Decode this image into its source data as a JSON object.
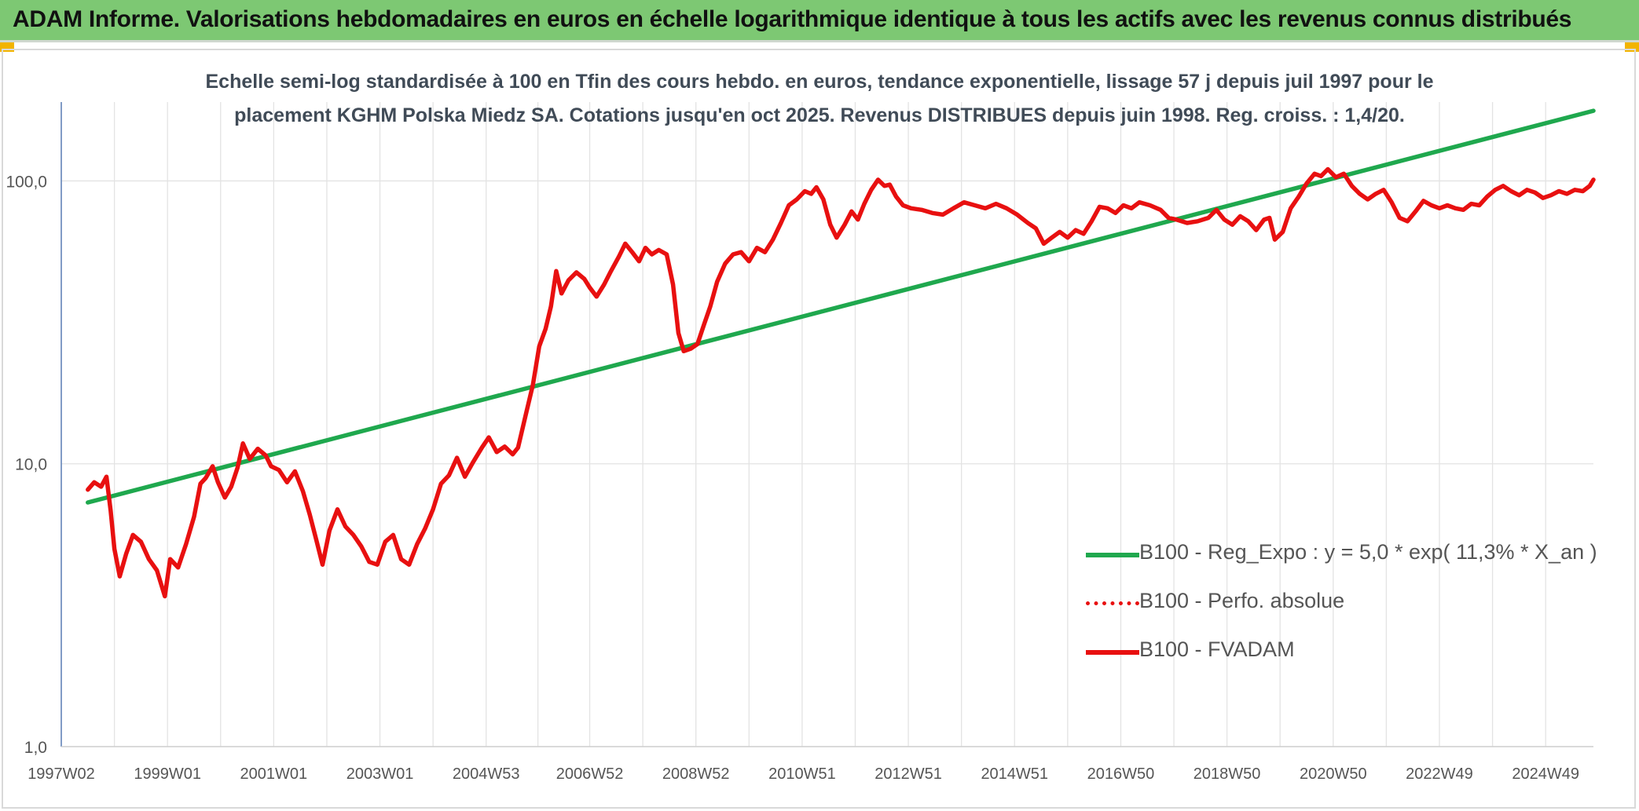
{
  "header": {
    "banner_title": "ADAM Informe. Valorisations hebdomadaires en euros en échelle logarithmique identique à tous les actifs avec les revenus connus distribués"
  },
  "chart_data": {
    "type": "line",
    "title_line1": "Echelle semi-log standardisée à 100 en Tfin des cours hebdo. en euros, tendance exponentielle, lissage 57 j depuis juil 1997 pour le",
    "title_line2": "placement KGHM Polska Miedz SA. Cotations jusqu'en oct 2025. Revenus DISTRIBUES depuis juin 1998. Reg. croiss. : 1,4/20.",
    "y_scale": "log",
    "ylim": [
      1,
      190
    ],
    "xlim": [
      1997.0,
      2025.85
    ],
    "x_tick_positions": [
      1997.0,
      1999.0,
      2001.0,
      2003.0,
      2005.0,
      2006.95,
      2008.95,
      2010.95,
      2012.95,
      2014.95,
      2016.95,
      2018.95,
      2020.95,
      2022.95,
      2024.95
    ],
    "x_tick_labels": [
      "1997W02",
      "1999W01",
      "2001W01",
      "2003W01",
      "2004W53",
      "2006W52",
      "2008W52",
      "2010W51",
      "2012W51",
      "2014W51",
      "2016W50",
      "2018W50",
      "2020W50",
      "2022W49",
      "2024W49"
    ],
    "y_ticks": [
      1,
      10,
      100
    ],
    "y_tick_labels": [
      "1,0",
      "10,0",
      "100,0"
    ],
    "grid": "vertical and horizontal",
    "legend_position": "bottom-right",
    "series": [
      {
        "name": "B100 - Reg_Expo : y = 5,0 * exp( 11,3% *  X_an )",
        "color": "#1fa84e",
        "style": "solid",
        "points": [
          [
            1997.5,
            7.3
          ],
          [
            2025.85,
            177
          ]
        ]
      },
      {
        "name": "B100 - Perfo. absolue",
        "color": "#e81010",
        "style": "dotted",
        "points": []
      },
      {
        "name": "B100 - FVADAM",
        "color": "#e81010",
        "style": "solid",
        "points": [
          [
            1997.5,
            8.1
          ],
          [
            1997.62,
            8.6
          ],
          [
            1997.75,
            8.3
          ],
          [
            1997.85,
            9.0
          ],
          [
            1997.93,
            6.8
          ],
          [
            1998.0,
            5.0
          ],
          [
            1998.1,
            4.0
          ],
          [
            1998.22,
            4.8
          ],
          [
            1998.35,
            5.6
          ],
          [
            1998.5,
            5.3
          ],
          [
            1998.65,
            4.6
          ],
          [
            1998.8,
            4.2
          ],
          [
            1998.95,
            3.4
          ],
          [
            1999.05,
            4.6
          ],
          [
            1999.2,
            4.3
          ],
          [
            1999.35,
            5.2
          ],
          [
            1999.5,
            6.5
          ],
          [
            1999.62,
            8.5
          ],
          [
            1999.72,
            8.9
          ],
          [
            1999.85,
            9.8
          ],
          [
            1999.95,
            8.6
          ],
          [
            2000.08,
            7.6
          ],
          [
            2000.2,
            8.3
          ],
          [
            2000.32,
            9.7
          ],
          [
            2000.42,
            11.8
          ],
          [
            2000.55,
            10.4
          ],
          [
            2000.7,
            11.3
          ],
          [
            2000.85,
            10.7
          ],
          [
            2000.95,
            9.8
          ],
          [
            2001.1,
            9.5
          ],
          [
            2001.25,
            8.6
          ],
          [
            2001.4,
            9.4
          ],
          [
            2001.55,
            8.0
          ],
          [
            2001.68,
            6.6
          ],
          [
            2001.8,
            5.4
          ],
          [
            2001.92,
            4.4
          ],
          [
            2002.05,
            5.8
          ],
          [
            2002.2,
            6.9
          ],
          [
            2002.35,
            6.0
          ],
          [
            2002.5,
            5.6
          ],
          [
            2002.65,
            5.1
          ],
          [
            2002.8,
            4.5
          ],
          [
            2002.95,
            4.4
          ],
          [
            2003.1,
            5.3
          ],
          [
            2003.25,
            5.6
          ],
          [
            2003.4,
            4.6
          ],
          [
            2003.55,
            4.4
          ],
          [
            2003.7,
            5.2
          ],
          [
            2003.85,
            5.9
          ],
          [
            2004.0,
            6.9
          ],
          [
            2004.15,
            8.5
          ],
          [
            2004.3,
            9.1
          ],
          [
            2004.45,
            10.5
          ],
          [
            2004.6,
            9.0
          ],
          [
            2004.75,
            10.1
          ],
          [
            2004.92,
            11.4
          ],
          [
            2005.05,
            12.4
          ],
          [
            2005.2,
            11.0
          ],
          [
            2005.35,
            11.5
          ],
          [
            2005.5,
            10.8
          ],
          [
            2005.6,
            11.4
          ],
          [
            2005.75,
            15.0
          ],
          [
            2005.88,
            19.0
          ],
          [
            2006.0,
            26.0
          ],
          [
            2006.12,
            30.0
          ],
          [
            2006.22,
            36.0
          ],
          [
            2006.32,
            48.0
          ],
          [
            2006.42,
            40.0
          ],
          [
            2006.55,
            44.5
          ],
          [
            2006.7,
            47.5
          ],
          [
            2006.85,
            45.0
          ],
          [
            2006.95,
            42.0
          ],
          [
            2007.08,
            39.0
          ],
          [
            2007.22,
            43.0
          ],
          [
            2007.35,
            48.0
          ],
          [
            2007.5,
            54.0
          ],
          [
            2007.62,
            60.0
          ],
          [
            2007.75,
            56.0
          ],
          [
            2007.88,
            52.0
          ],
          [
            2008.0,
            58.0
          ],
          [
            2008.12,
            55.0
          ],
          [
            2008.25,
            57.0
          ],
          [
            2008.4,
            55.0
          ],
          [
            2008.52,
            43.0
          ],
          [
            2008.62,
            29.0
          ],
          [
            2008.72,
            25.0
          ],
          [
            2008.85,
            25.5
          ],
          [
            2008.98,
            26.5
          ],
          [
            2009.1,
            31.0
          ],
          [
            2009.22,
            36.0
          ],
          [
            2009.35,
            44.0
          ],
          [
            2009.5,
            51.0
          ],
          [
            2009.65,
            55.0
          ],
          [
            2009.8,
            56.0
          ],
          [
            2009.95,
            52.0
          ],
          [
            2010.1,
            58.0
          ],
          [
            2010.25,
            56.0
          ],
          [
            2010.4,
            62.0
          ],
          [
            2010.55,
            71.0
          ],
          [
            2010.7,
            82.0
          ],
          [
            2010.85,
            86.0
          ],
          [
            2011.0,
            92.0
          ],
          [
            2011.12,
            90.0
          ],
          [
            2011.22,
            95.0
          ],
          [
            2011.35,
            86.0
          ],
          [
            2011.48,
            70.0
          ],
          [
            2011.6,
            63.0
          ],
          [
            2011.75,
            70.0
          ],
          [
            2011.88,
            78.0
          ],
          [
            2012.0,
            73.0
          ],
          [
            2012.12,
            83.0
          ],
          [
            2012.25,
            93.0
          ],
          [
            2012.38,
            101.0
          ],
          [
            2012.5,
            96.0
          ],
          [
            2012.6,
            97.0
          ],
          [
            2012.72,
            88.0
          ],
          [
            2012.85,
            82.0
          ],
          [
            2013.0,
            80.0
          ],
          [
            2013.2,
            79.0
          ],
          [
            2013.4,
            77.0
          ],
          [
            2013.6,
            76.0
          ],
          [
            2013.8,
            80.0
          ],
          [
            2014.0,
            84.0
          ],
          [
            2014.2,
            82.0
          ],
          [
            2014.4,
            80.0
          ],
          [
            2014.6,
            83.0
          ],
          [
            2014.8,
            80.0
          ],
          [
            2015.0,
            76.0
          ],
          [
            2015.2,
            71.0
          ],
          [
            2015.35,
            68.0
          ],
          [
            2015.5,
            60.0
          ],
          [
            2015.65,
            63.0
          ],
          [
            2015.8,
            66.0
          ],
          [
            2015.95,
            63.0
          ],
          [
            2016.1,
            67.0
          ],
          [
            2016.25,
            65.0
          ],
          [
            2016.4,
            72.0
          ],
          [
            2016.55,
            81.0
          ],
          [
            2016.7,
            80.0
          ],
          [
            2016.85,
            77.0
          ],
          [
            2017.0,
            82.0
          ],
          [
            2017.15,
            80.0
          ],
          [
            2017.3,
            84.0
          ],
          [
            2017.5,
            82.0
          ],
          [
            2017.7,
            79.0
          ],
          [
            2017.85,
            74.0
          ],
          [
            2018.0,
            73.0
          ],
          [
            2018.2,
            71.0
          ],
          [
            2018.4,
            72.0
          ],
          [
            2018.6,
            74.0
          ],
          [
            2018.75,
            79.0
          ],
          [
            2018.9,
            73.0
          ],
          [
            2019.05,
            70.0
          ],
          [
            2019.2,
            75.0
          ],
          [
            2019.35,
            72.0
          ],
          [
            2019.5,
            67.0
          ],
          [
            2019.65,
            73.0
          ],
          [
            2019.75,
            74.0
          ],
          [
            2019.85,
            62.0
          ],
          [
            2020.0,
            66.0
          ],
          [
            2020.15,
            80.0
          ],
          [
            2020.3,
            88.0
          ],
          [
            2020.45,
            98.0
          ],
          [
            2020.6,
            106.0
          ],
          [
            2020.72,
            104.0
          ],
          [
            2020.85,
            110.0
          ],
          [
            2021.0,
            103.0
          ],
          [
            2021.15,
            106.0
          ],
          [
            2021.3,
            96.0
          ],
          [
            2021.45,
            90.0
          ],
          [
            2021.6,
            86.0
          ],
          [
            2021.75,
            90.0
          ],
          [
            2021.9,
            93.0
          ],
          [
            2022.05,
            84.0
          ],
          [
            2022.2,
            74.0
          ],
          [
            2022.35,
            72.0
          ],
          [
            2022.5,
            78.0
          ],
          [
            2022.65,
            85.0
          ],
          [
            2022.8,
            82.0
          ],
          [
            2022.95,
            80.0
          ],
          [
            2023.1,
            82.0
          ],
          [
            2023.25,
            80.0
          ],
          [
            2023.4,
            79.0
          ],
          [
            2023.55,
            83.0
          ],
          [
            2023.7,
            82.0
          ],
          [
            2023.85,
            88.0
          ],
          [
            2024.0,
            93.0
          ],
          [
            2024.15,
            96.0
          ],
          [
            2024.3,
            92.0
          ],
          [
            2024.45,
            89.0
          ],
          [
            2024.6,
            93.0
          ],
          [
            2024.75,
            91.0
          ],
          [
            2024.9,
            87.0
          ],
          [
            2025.05,
            89.0
          ],
          [
            2025.2,
            92.0
          ],
          [
            2025.35,
            90.0
          ],
          [
            2025.5,
            93.0
          ],
          [
            2025.65,
            92.0
          ],
          [
            2025.78,
            96.0
          ],
          [
            2025.85,
            101.0
          ]
        ]
      }
    ]
  }
}
